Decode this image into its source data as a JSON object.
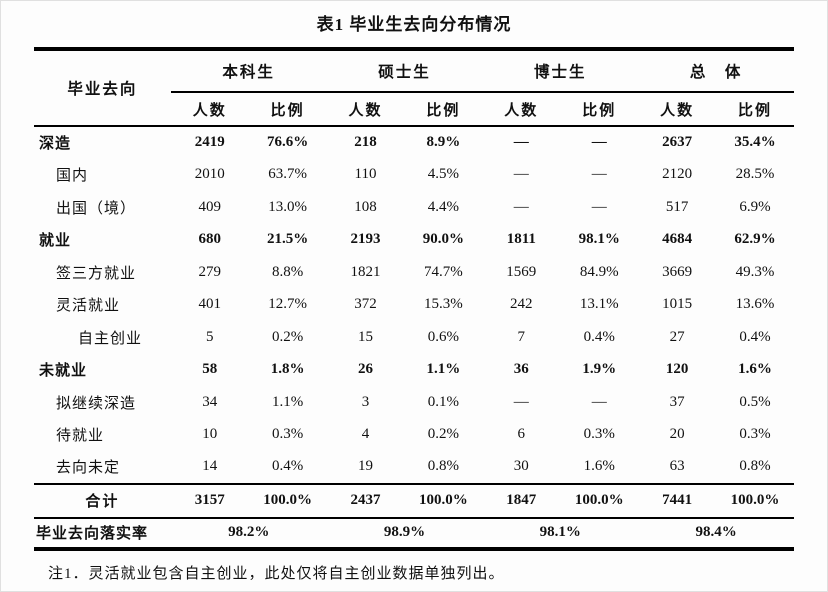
{
  "title": "表1 毕业生去向分布情况",
  "table": {
    "corner_label": "毕业去向",
    "group_headers": [
      "本科生",
      "硕士生",
      "博士生",
      "总　体"
    ],
    "sub_headers": [
      "人数",
      "比例",
      "人数",
      "比例",
      "人数",
      "比例",
      "人数",
      "比例"
    ],
    "rows": [
      {
        "label": "深造",
        "level": 0,
        "bold": true,
        "values": [
          "2419",
          "76.6%",
          "218",
          "8.9%",
          "—",
          "—",
          "2637",
          "35.4%"
        ]
      },
      {
        "label": "国内",
        "level": 1,
        "bold": false,
        "values": [
          "2010",
          "63.7%",
          "110",
          "4.5%",
          "—",
          "—",
          "2120",
          "28.5%"
        ]
      },
      {
        "label": "出国（境）",
        "level": 1,
        "bold": false,
        "values": [
          "409",
          "13.0%",
          "108",
          "4.4%",
          "—",
          "—",
          "517",
          "6.9%"
        ]
      },
      {
        "label": "就业",
        "level": 0,
        "bold": true,
        "values": [
          "680",
          "21.5%",
          "2193",
          "90.0%",
          "1811",
          "98.1%",
          "4684",
          "62.9%"
        ]
      },
      {
        "label": "签三方就业",
        "level": 1,
        "bold": false,
        "values": [
          "279",
          "8.8%",
          "1821",
          "74.7%",
          "1569",
          "84.9%",
          "3669",
          "49.3%"
        ]
      },
      {
        "label": "灵活就业",
        "level": 1,
        "bold": false,
        "values": [
          "401",
          "12.7%",
          "372",
          "15.3%",
          "242",
          "13.1%",
          "1015",
          "13.6%"
        ]
      },
      {
        "label": "自主创业",
        "level": 2,
        "bold": false,
        "values": [
          "5",
          "0.2%",
          "15",
          "0.6%",
          "7",
          "0.4%",
          "27",
          "0.4%"
        ]
      },
      {
        "label": "未就业",
        "level": 0,
        "bold": true,
        "values": [
          "58",
          "1.8%",
          "26",
          "1.1%",
          "36",
          "1.9%",
          "120",
          "1.6%"
        ]
      },
      {
        "label": "拟继续深造",
        "level": 1,
        "bold": false,
        "values": [
          "34",
          "1.1%",
          "3",
          "0.1%",
          "—",
          "—",
          "37",
          "0.5%"
        ]
      },
      {
        "label": "待就业",
        "level": 1,
        "bold": false,
        "values": [
          "10",
          "0.3%",
          "4",
          "0.2%",
          "6",
          "0.3%",
          "20",
          "0.3%"
        ]
      },
      {
        "label": "去向未定",
        "level": 1,
        "bold": false,
        "values": [
          "14",
          "0.4%",
          "19",
          "0.8%",
          "30",
          "1.6%",
          "63",
          "0.8%"
        ]
      }
    ],
    "total_row": {
      "label": "合计",
      "values": [
        "3157",
        "100.0%",
        "2437",
        "100.0%",
        "1847",
        "100.0%",
        "7441",
        "100.0%"
      ]
    },
    "rate_row": {
      "label": "毕业去向落实率",
      "values": [
        "98.2%",
        "98.9%",
        "98.1%",
        "98.4%"
      ]
    }
  },
  "note": "注1．灵活就业包含自主创业，此处仅将自主创业数据单独列出。"
}
